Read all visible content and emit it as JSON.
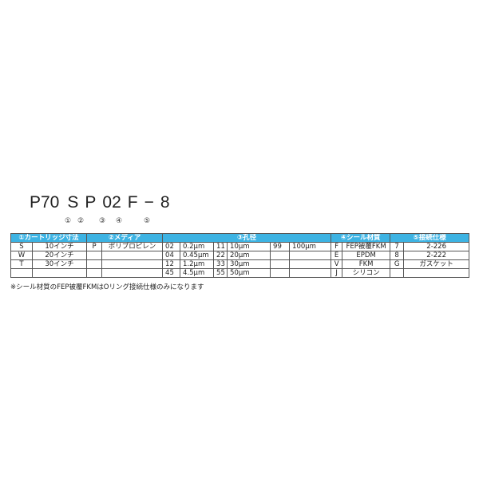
{
  "code": {
    "parts": [
      "P70",
      "S",
      "P",
      "02",
      "F",
      "−",
      "8"
    ]
  },
  "markers": [
    "①",
    "②",
    "③",
    "④",
    "⑤"
  ],
  "table": {
    "headers": [
      "①カートリッジ寸法",
      "②メディア",
      "③孔径",
      "④シール材質",
      "⑤接続仕様"
    ],
    "rows": [
      [
        "S",
        "10インチ",
        "P",
        "ポリプロピレン",
        "02",
        "0.2μm",
        "11",
        "10μm",
        "99",
        "100μm",
        "F",
        "FEP被覆FKM",
        "7",
        "2-226"
      ],
      [
        "W",
        "20インチ",
        "",
        "",
        "04",
        "0.45μm",
        "22",
        "20μm",
        "",
        "",
        "E",
        "EPDM",
        "8",
        "2-222"
      ],
      [
        "T",
        "30インチ",
        "",
        "",
        "12",
        "1.2μm",
        "33",
        "30μm",
        "",
        "",
        "V",
        "FKM",
        "G",
        "ガスケット"
      ],
      [
        "",
        "",
        "",
        "",
        "45",
        "4.5μm",
        "55",
        "50μm",
        "",
        "",
        "J",
        "シリコン",
        "",
        ""
      ]
    ]
  },
  "note": "※シール材質のFEP被覆FKMはOリング接続仕様のみになります",
  "colors": {
    "header_bg": "#3db3e3",
    "header_text": "#ffffff"
  }
}
